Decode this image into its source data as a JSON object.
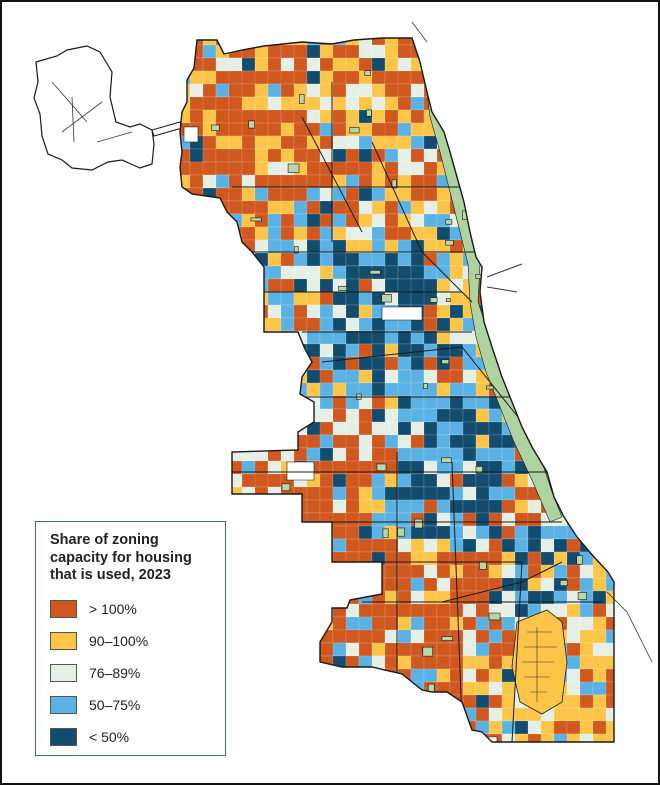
{
  "legend": {
    "title": "Share of zoning\ncapacity for housing\nthat is used, 2023",
    "items": [
      {
        "label": "> 100%",
        "color": "#d0571d"
      },
      {
        "label": "90–100%",
        "color": "#fcc548"
      },
      {
        "label": "76–89%",
        "color": "#e6efe6"
      },
      {
        "label": "50–75%",
        "color": "#5ab2e4"
      },
      {
        "label": "< 50%",
        "color": "#124c6f"
      }
    ]
  },
  "colors": {
    "park": "#b9d7a6",
    "lake_shore": "#aed3a0",
    "boundary": "#1a1a1a",
    "background": "#ffffff"
  }
}
